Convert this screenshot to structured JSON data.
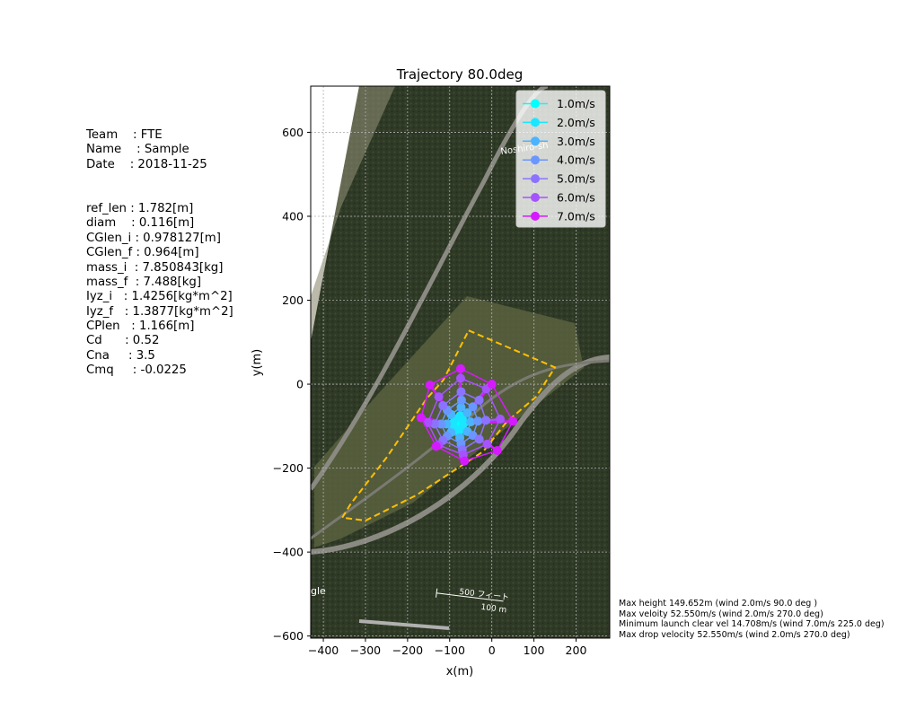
{
  "info_lines": [
    "Team    : FTE",
    "Name    : Sample",
    "Date    : 2018-11-25",
    "",
    "ref_len : 1.782[m]",
    "diam    : 0.116[m]",
    "CGlen_i : 0.978127[m]",
    "CGlen_f : 0.964[m]",
    "mass_i  : 7.850843[kg]",
    "mass_f  : 7.488[kg]",
    "Iyz_i   : 1.4256[kg*m^2]",
    "Iyz_f   : 1.3877[kg*m^2]",
    "CPlen   : 1.166[m]",
    "Cd      : 0.52",
    "Cna     : 3.5",
    "Cmq     : -0.0225"
  ],
  "stats_lines": [
    "Max height 149.652m (wind 2.0m/s 90.0 deg )",
    "Max veloity 52.550m/s (wind 2.0m/s 270.0 deg)",
    "Minimum launch clear vel 14.708m/s (wind 7.0m/s 225.0 deg)",
    "Max drop velocity 52.550m/s (wind 2.0m/s 270.0 deg)"
  ],
  "map_labels": {
    "place": "Noshiro-sh",
    "scale_top": "500 フィート",
    "scale_bottom": "100 m",
    "attribution": "gle"
  },
  "chart_data": {
    "type": "scatter",
    "title": "Trajectory 80.0deg",
    "xlabel": "x(m)",
    "ylabel": "y(m)",
    "xlim": [
      -430,
      280
    ],
    "ylim": [
      -605,
      710
    ],
    "x_ticks": [
      -400,
      -300,
      -200,
      -100,
      0,
      100,
      200
    ],
    "y_ticks": [
      -600,
      -400,
      -200,
      0,
      200,
      400,
      600
    ],
    "grid": true,
    "legend_position": "top-right",
    "wind_directions_deg": [
      0,
      45,
      90,
      135,
      180,
      225,
      270,
      315
    ],
    "launch_point": [
      -80,
      -95
    ],
    "series": [
      {
        "name": "1.0m/s",
        "color": "#00ffff",
        "points": [
          [
            -79,
            -89
          ],
          [
            -78,
            -91
          ],
          [
            -76,
            -94
          ],
          [
            -78,
            -98
          ],
          [
            -80,
            -101
          ],
          [
            -82,
            -98
          ],
          [
            -84,
            -95
          ],
          [
            -82,
            -92
          ]
        ]
      },
      {
        "name": "2.0m/s",
        "color": "#1ae6ff",
        "points": [
          [
            -75,
            -75
          ],
          [
            -70,
            -82
          ],
          [
            -66,
            -93
          ],
          [
            -70,
            -105
          ],
          [
            -78,
            -113
          ],
          [
            -88,
            -106
          ],
          [
            -94,
            -95
          ],
          [
            -88,
            -83
          ]
        ]
      },
      {
        "name": "3.0m/s",
        "color": "#4cb3ff",
        "points": [
          [
            -73,
            -55
          ],
          [
            -58,
            -68
          ],
          [
            -50,
            -90
          ],
          [
            -58,
            -113
          ],
          [
            -76,
            -128
          ],
          [
            -97,
            -115
          ],
          [
            -108,
            -95
          ],
          [
            -97,
            -72
          ]
        ]
      },
      {
        "name": "4.0m/s",
        "color": "#6a96ff",
        "points": [
          [
            -72,
            -38
          ],
          [
            -45,
            -54
          ],
          [
            -33,
            -88
          ],
          [
            -45,
            -122
          ],
          [
            -73,
            -142
          ],
          [
            -106,
            -124
          ],
          [
            -121,
            -95
          ],
          [
            -106,
            -62
          ]
        ]
      },
      {
        "name": "5.0m/s",
        "color": "#8c73ff",
        "points": [
          [
            -73,
            -18
          ],
          [
            -30,
            -38
          ],
          [
            -14,
            -86
          ],
          [
            -30,
            -131
          ],
          [
            -70,
            -156
          ],
          [
            -116,
            -134
          ],
          [
            -136,
            -95
          ],
          [
            -116,
            -51
          ]
        ]
      },
      {
        "name": "6.0m/s",
        "color": "#a653ff",
        "points": [
          [
            -74,
            14
          ],
          [
            -13,
            -11
          ],
          [
            20,
            -83
          ],
          [
            -11,
            -143
          ],
          [
            -68,
            -168
          ],
          [
            -126,
            -145
          ],
          [
            -152,
            -92
          ],
          [
            -126,
            -30
          ]
        ]
      },
      {
        "name": "7.0m/s",
        "color": "#d61aff",
        "points": [
          [
            -74,
            37
          ],
          [
            0,
            0
          ],
          [
            50,
            -88
          ],
          [
            13,
            -158
          ],
          [
            -65,
            -183
          ],
          [
            -132,
            -148
          ],
          [
            -168,
            -80
          ],
          [
            -147,
            -2
          ]
        ]
      }
    ],
    "boundary": {
      "style": "dashed",
      "color": "#ffc000",
      "points": [
        [
          -55,
          128
        ],
        [
          150,
          40
        ],
        [
          105,
          -30
        ],
        [
          35,
          -90
        ],
        [
          -20,
          -160
        ],
        [
          -180,
          -265
        ],
        [
          -300,
          -325
        ],
        [
          -355,
          -318
        ],
        [
          -335,
          -285
        ],
        [
          -250,
          -175
        ],
        [
          -155,
          -35
        ],
        [
          -115,
          10
        ],
        [
          -55,
          128
        ]
      ]
    }
  }
}
